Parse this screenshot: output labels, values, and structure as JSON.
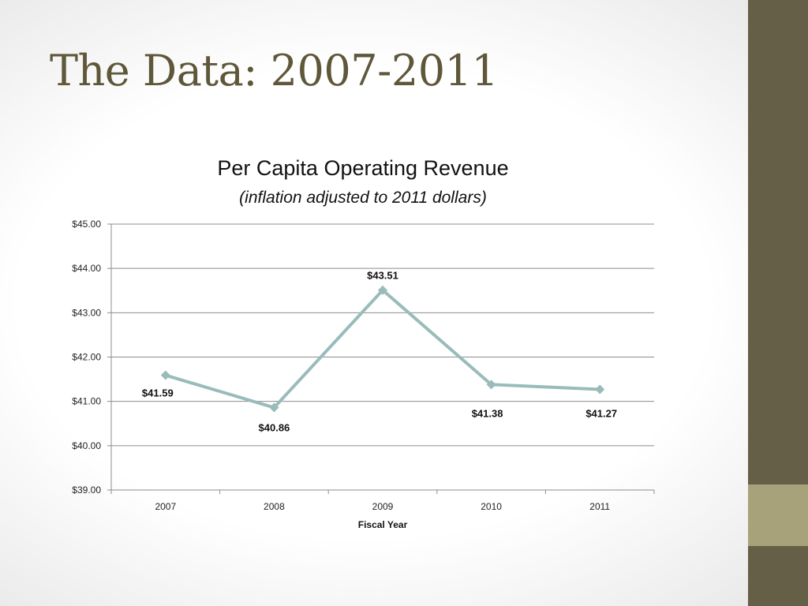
{
  "slide": {
    "title": "The Data: 2007-2011"
  },
  "colors": {
    "sidebar_dark": "#665f47",
    "sidebar_light": "#a8a27a",
    "title": "#5f5739",
    "series_line": "#99bcbb",
    "gridline": "#8c8c8c"
  },
  "chart_data": {
    "type": "line",
    "title": "Per Capita Operating Revenue",
    "subtitle": "(inflation adjusted to 2011 dollars)",
    "xlabel": "Fiscal Year",
    "ylabel": "",
    "categories": [
      "2007",
      "2008",
      "2009",
      "2010",
      "2011"
    ],
    "series": [
      {
        "values": [
          41.59,
          40.86,
          43.51,
          41.38,
          41.27
        ],
        "data_labels": [
          "$41.59",
          "$40.86",
          "$43.51",
          "$41.38",
          "$41.27"
        ]
      }
    ],
    "ylim": [
      39,
      45
    ],
    "yticks": [
      45,
      44,
      43,
      42,
      41,
      40,
      39
    ],
    "ytick_labels": [
      "$45.00",
      "$44.00",
      "$43.00",
      "$42.00",
      "$41.00",
      "$40.00",
      "$39.00"
    ],
    "grid": true,
    "legend": "none",
    "marker": "diamond"
  }
}
